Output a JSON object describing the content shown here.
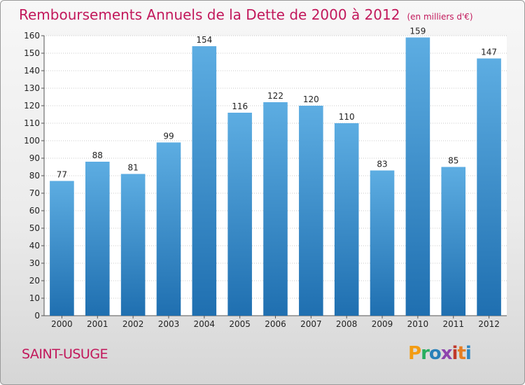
{
  "header": {
    "title": "Remboursements Annuels de la Dette de 2000 à 2012",
    "subtitle": "(en milliers d'€)"
  },
  "footer": {
    "commune": "SAINT-USUGE",
    "brand": "Proxiti",
    "brand_colors": [
      "#f39c12",
      "#27ae60",
      "#2980b9",
      "#8e44ad",
      "#c0392b",
      "#e67e22",
      "#2e86c1"
    ]
  },
  "colors": {
    "title": "#c2185b",
    "bar_top": "#5dade2",
    "bar_bottom": "#1f6fb0",
    "grid": "#c8c8c8"
  },
  "chart_data": {
    "type": "bar",
    "categories": [
      "2000",
      "2001",
      "2002",
      "2003",
      "2004",
      "2005",
      "2006",
      "2007",
      "2008",
      "2009",
      "2010",
      "2011",
      "2012"
    ],
    "values": [
      77,
      88,
      81,
      99,
      154,
      116,
      122,
      120,
      110,
      83,
      159,
      85,
      147
    ],
    "ylim": [
      0,
      160
    ],
    "ytick_step": 10,
    "grid": true,
    "legend": "none"
  }
}
